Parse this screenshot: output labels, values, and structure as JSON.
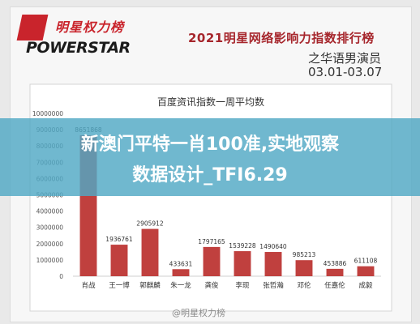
{
  "logo": {
    "cn": "明星权力榜",
    "en": "POWERSTAR"
  },
  "header": {
    "title": "2021明星网络影响力指数排行榜",
    "subtitle": "之华语男演员",
    "date_range": "03.01-03.07"
  },
  "overlay": {
    "line1": "新澳门平特一肖100准,实地观察",
    "line2": "数据设计_TFI6.29"
  },
  "watermark": "@明星权力榜",
  "colors": {
    "bar": "#c0403e",
    "title": "#a6262c",
    "overlay": "#50a8c4"
  },
  "chart_data": {
    "type": "bar",
    "title": "百度资讯指数一周平均数",
    "categories": [
      "肖战",
      "王一博",
      "郭麒麟",
      "朱一龙",
      "龚俊",
      "李现",
      "张哲瀚",
      "邓伦",
      "任嘉伦",
      "成毅"
    ],
    "values": [
      8651868,
      1936761,
      2905912,
      433631,
      1797165,
      1539228,
      1490640,
      985213,
      453886,
      611108
    ],
    "value_labels": [
      "8651868",
      "1936761",
      "2905912",
      "433631",
      "1797165",
      "1539228",
      "1490640",
      "985213",
      "453886",
      "611108"
    ],
    "yticks": [
      "0",
      "1000000",
      "2000000",
      "3000000",
      "4000000",
      "5000000",
      "6000000",
      "7000000",
      "8000000",
      "9000000",
      "10000000"
    ],
    "ylim": [
      0,
      10000000
    ],
    "xlabel": "",
    "ylabel": "",
    "grid": false,
    "legend": "none"
  }
}
